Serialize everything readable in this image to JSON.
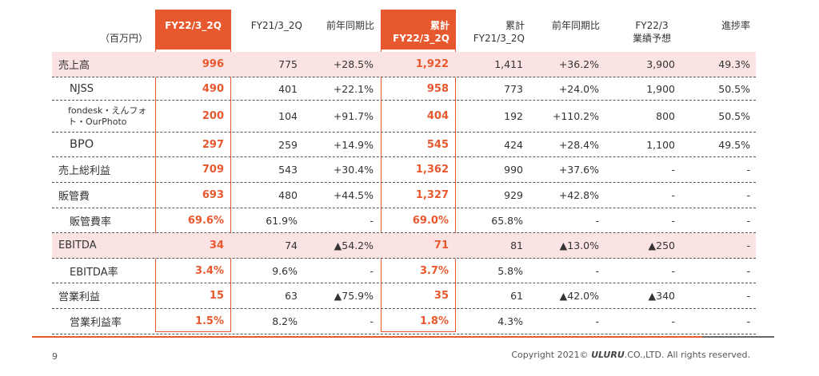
{
  "header": {
    "unit": "（百万円）",
    "cols": [
      {
        "line1": "",
        "line2": "FY22/3_2Q"
      },
      {
        "line1": "",
        "line2": "FY21/3_2Q"
      },
      {
        "line1": "",
        "line2": "前年同期比"
      },
      {
        "line1": "累計",
        "line2": "FY22/3_2Q"
      },
      {
        "line1": "累計",
        "line2": "FY21/3_2Q"
      },
      {
        "line1": "",
        "line2": "前年同期比"
      },
      {
        "line1": "FY22/3",
        "line2": "業績予想"
      },
      {
        "line1": "",
        "line2": "進捗率"
      }
    ]
  },
  "rows": [
    {
      "label": "売上高",
      "values": [
        "996",
        "775",
        "+28.5%",
        "1,922",
        "1,411",
        "+36.2%",
        "3,900",
        "49.3%"
      ]
    },
    {
      "label": "NJSS",
      "values": [
        "490",
        "401",
        "+22.1%",
        "958",
        "773",
        "+24.0%",
        "1,900",
        "50.5%"
      ]
    },
    {
      "label": "fondesk・えんフォト・OurPhoto",
      "values": [
        "200",
        "104",
        "+91.7%",
        "404",
        "192",
        "+110.2%",
        "800",
        "50.5%"
      ]
    },
    {
      "label": "BPO",
      "values": [
        "297",
        "259",
        "+14.9%",
        "545",
        "424",
        "+28.4%",
        "1,100",
        "49.5%"
      ]
    },
    {
      "label": "売上総利益",
      "values": [
        "709",
        "543",
        "+30.4%",
        "1,362",
        "990",
        "+37.6%",
        "-",
        "-"
      ]
    },
    {
      "label": "販管費",
      "values": [
        "693",
        "480",
        "+44.5%",
        "1,327",
        "929",
        "+42.8%",
        "-",
        "-"
      ]
    },
    {
      "label": "販管費率",
      "values": [
        "69.6%",
        "61.9%",
        "-",
        "69.0%",
        "65.8%",
        "-",
        "-",
        "-"
      ]
    },
    {
      "label": "EBITDA",
      "values": [
        "34",
        "74",
        "▲54.2%",
        "71",
        "81",
        "▲13.0%",
        "▲250",
        "-"
      ]
    },
    {
      "label": "EBITDA率",
      "values": [
        "3.4%",
        "9.6%",
        "-",
        "3.7%",
        "5.8%",
        "-",
        "-",
        "-"
      ]
    },
    {
      "label": "営業利益",
      "values": [
        "15",
        "63",
        "▲75.9%",
        "35",
        "61",
        "▲42.0%",
        "▲340",
        "-"
      ]
    },
    {
      "label": "営業利益率",
      "values": [
        "1.5%",
        "8.2%",
        "-",
        "1.8%",
        "4.3%",
        "-",
        "-",
        "-"
      ]
    }
  ],
  "footer": {
    "page": "9",
    "copyright_pre": "Copyright 2021©",
    "brand": "ULURU",
    "copyright_post": ".CO.,LTD. All rights reserved."
  },
  "colors": {
    "accent": "#e8582f",
    "pink_row": "#fbe3e3"
  }
}
